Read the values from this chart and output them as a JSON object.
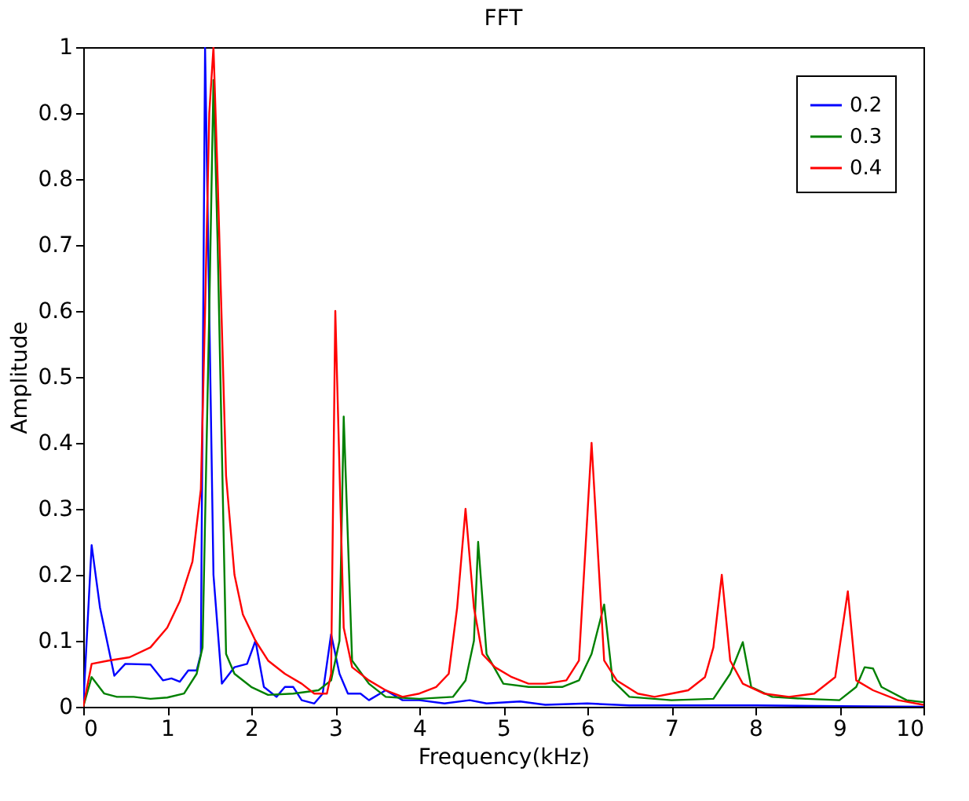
{
  "chart_data": {
    "type": "line",
    "title": "FFT",
    "xlabel": "Frequency(kHz)",
    "ylabel": "Amplitude",
    "xlim": [
      0,
      10
    ],
    "ylim": [
      0,
      1
    ],
    "xticks": [
      0,
      1,
      2,
      3,
      4,
      5,
      6,
      7,
      8,
      9,
      10
    ],
    "yticks": [
      0,
      0.1,
      0.2,
      0.3,
      0.4,
      0.5,
      0.6,
      0.7,
      0.8,
      0.9,
      1
    ],
    "grid": false,
    "legend": "top right",
    "line_style": "solid",
    "marker": "none",
    "series": [
      {
        "name": "0.2",
        "color": "#0000ff",
        "x": [
          0,
          0.1,
          0.2,
          0.37,
          0.5,
          0.8,
          0.95,
          1.05,
          1.15,
          1.25,
          1.35,
          1.4,
          1.45,
          1.55,
          1.65,
          1.8,
          1.95,
          2.05,
          2.15,
          2.3,
          2.4,
          2.5,
          2.6,
          2.75,
          2.85,
          2.95,
          3.05,
          3.15,
          3.3,
          3.4,
          3.6,
          3.8,
          4.0,
          4.3,
          4.6,
          4.8,
          5.2,
          5.5,
          6.0,
          6.5,
          7.0,
          8.0,
          9.0,
          10.0
        ],
        "values": [
          0,
          0.245,
          0.15,
          0.047,
          0.065,
          0.064,
          0.04,
          0.043,
          0.038,
          0.055,
          0.055,
          0.08,
          1.0,
          0.2,
          0.035,
          0.06,
          0.065,
          0.1,
          0.03,
          0.015,
          0.03,
          0.03,
          0.01,
          0.005,
          0.02,
          0.11,
          0.05,
          0.02,
          0.02,
          0.01,
          0.025,
          0.01,
          0.01,
          0.005,
          0.01,
          0.005,
          0.008,
          0.003,
          0.005,
          0.002,
          0.002,
          0.002,
          0.001,
          0
        ]
      },
      {
        "name": "0.3",
        "color": "#008000",
        "x": [
          0,
          0.1,
          0.25,
          0.4,
          0.6,
          0.8,
          1.0,
          1.2,
          1.35,
          1.42,
          1.5,
          1.55,
          1.6,
          1.7,
          1.8,
          2.0,
          2.2,
          2.5,
          2.8,
          2.95,
          3.05,
          3.1,
          3.2,
          3.4,
          3.6,
          4.0,
          4.4,
          4.55,
          4.65,
          4.7,
          4.8,
          5.0,
          5.3,
          5.7,
          5.9,
          6.05,
          6.2,
          6.3,
          6.5,
          7.0,
          7.5,
          7.7,
          7.85,
          7.95,
          8.2,
          8.6,
          9.0,
          9.2,
          9.3,
          9.4,
          9.5,
          9.8,
          10.0
        ],
        "values": [
          0,
          0.045,
          0.02,
          0.015,
          0.015,
          0.012,
          0.014,
          0.02,
          0.05,
          0.09,
          0.6,
          0.95,
          0.7,
          0.08,
          0.05,
          0.03,
          0.018,
          0.02,
          0.025,
          0.04,
          0.1,
          0.44,
          0.07,
          0.035,
          0.015,
          0.012,
          0.015,
          0.04,
          0.1,
          0.25,
          0.08,
          0.035,
          0.03,
          0.03,
          0.04,
          0.08,
          0.155,
          0.04,
          0.015,
          0.01,
          0.012,
          0.05,
          0.098,
          0.03,
          0.015,
          0.012,
          0.01,
          0.03,
          0.06,
          0.058,
          0.03,
          0.01,
          0.007
        ]
      },
      {
        "name": "0.4",
        "color": "#ff0000",
        "x": [
          0,
          0.1,
          0.3,
          0.55,
          0.8,
          1.0,
          1.15,
          1.3,
          1.4,
          1.45,
          1.5,
          1.55,
          1.6,
          1.7,
          1.8,
          1.9,
          2.05,
          2.2,
          2.4,
          2.6,
          2.75,
          2.9,
          2.95,
          3.0,
          3.1,
          3.2,
          3.4,
          3.6,
          3.8,
          4.0,
          4.2,
          4.35,
          4.45,
          4.55,
          4.65,
          4.75,
          4.9,
          5.1,
          5.3,
          5.5,
          5.75,
          5.9,
          6.05,
          6.2,
          6.35,
          6.6,
          6.8,
          7.0,
          7.2,
          7.4,
          7.5,
          7.6,
          7.7,
          7.85,
          8.1,
          8.4,
          8.7,
          8.95,
          9.1,
          9.2,
          9.4,
          9.7,
          10.0
        ],
        "values": [
          0,
          0.065,
          0.07,
          0.075,
          0.09,
          0.12,
          0.16,
          0.22,
          0.33,
          0.6,
          0.9,
          1.0,
          0.8,
          0.35,
          0.2,
          0.14,
          0.1,
          0.07,
          0.05,
          0.035,
          0.02,
          0.02,
          0.05,
          0.6,
          0.12,
          0.06,
          0.04,
          0.025,
          0.015,
          0.02,
          0.03,
          0.05,
          0.15,
          0.3,
          0.15,
          0.08,
          0.06,
          0.045,
          0.035,
          0.035,
          0.04,
          0.07,
          0.4,
          0.07,
          0.04,
          0.02,
          0.015,
          0.02,
          0.025,
          0.045,
          0.09,
          0.2,
          0.07,
          0.035,
          0.02,
          0.015,
          0.02,
          0.045,
          0.175,
          0.04,
          0.025,
          0.01,
          0.003
        ]
      }
    ]
  }
}
